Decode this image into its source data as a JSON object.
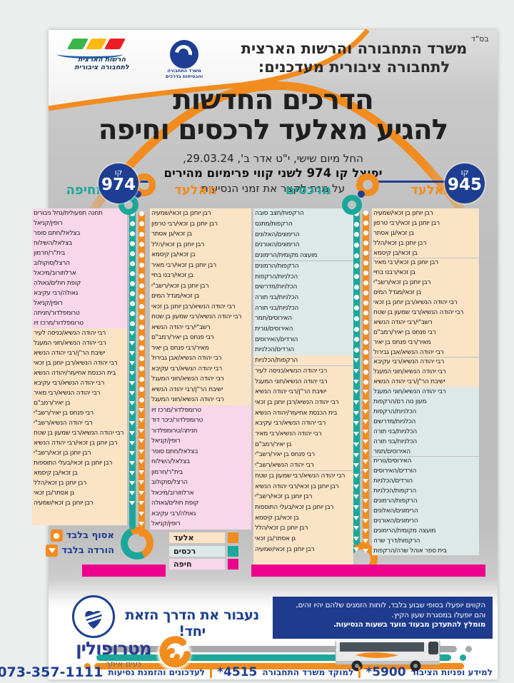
{
  "meta": {
    "bsd": "בס\"ד"
  },
  "header": {
    "line1": "משרד התחבורה והרשות הארצית",
    "line2": "לתחבורה ציבורית מעדכנים:",
    "authority_logo_line1": "הרשות הארצית",
    "authority_logo_line2": "לתחבורה ציבורית",
    "ministry_logo_line1": "משרד התחבורה",
    "ministry_logo_line2": "והבטיחות בדרכים"
  },
  "title": {
    "line1": "הדרכים החדשות",
    "line2": "להגיע מאלעד לרכסים וחיפה"
  },
  "subtitle": {
    "line1": "החל מיום שישי, י\"ט אדר ב', 29.03.24,",
    "line2": "יפוצל קו 974 לשני קווי פרימיום מהירים",
    "line3": "על מנת לקצר את זמני הנסיעות"
  },
  "colors": {
    "orange": "#F28C1E",
    "teal": "#1CA79B",
    "magenta": "#EC008C",
    "dark_blue": "#1d3e92",
    "elad_bg": "#FBE3C6",
    "rechasim_bg": "#DCE9E6",
    "haifa_bg": "#F8D7E8"
  },
  "routes": [
    {
      "badge_prefix": "קו",
      "number": "945",
      "columns": [
        {
          "header": "מאלעד",
          "sections": [
            {
              "city": "elad",
              "marker": "circle",
              "stops": [
                "רבן יוחנן בן זכאי/שמעיה",
                "רבן יוחנן בן זכאי/רבי טרפון",
                "בן זכאי/גן אסתר",
                "רבן יוחנן בן זכאי/הלל",
                "בן זכאי/בן קיסמא",
                "רבן יוחנן בן זכאי/רבי מאיר",
                "בן זכאי/רבנו בחיי",
                "רבן יוחנן בן זכאי/רשב\"י",
                "בן זכאי/מגדל המים",
                "רבי יהודה הנשיא/רבן יוחנן בן זכאי",
                "רבי יהודה הנשיא/רבי שמעון בן שטח",
                "רשב\"י/רבי יהודה הנשיא",
                "רבי פנחס בן יאיר/רמב\"ם",
                "מאיר/רבי פנחס בן יאיר",
                "רבי יהודה הנשיא/אבן גבירול",
                "רבי יהודה הנשיא/רבי עקיבא",
                "רבי יהודה הנשיא/חוני המעגל",
                "ישיבת הר\"ן/רבי יהודה הנשיא"
              ]
            },
            {
              "city": "rechasim",
              "marker": "triangle",
              "stops": [
                "רבי יהודה הנשיא/חוני המעגל",
                "מעון נוה רם/הרקפות",
                "הכלניות/הרקפות",
                "הכלניות/מדרשים",
                "הכלניות/בני תורה",
                "הכלניות/בני תורה",
                "האירוסים/תמר",
                "האירוסים/נורית",
                "הורדים/האירוסים",
                "הורדים/הכלניות",
                "הרקפות/הכלניות",
                "הרקפות/הרמונים",
                "הרימונים/האלונים",
                "הרימונים/האורנים",
                "מועצה מקומית/הרימונים",
                "הרקפות/דרך שרה",
                "בית ספר אוהל שרה/הרקפות"
              ]
            }
          ]
        },
        {
          "header": "מרכסים",
          "sections": [
            {
              "city": "rechasim",
              "marker": "circle",
              "stops": [
                "הרקפות/חצב סובה",
                "הרקפות/מתנס",
                "הרימונים/האלונים",
                "הרימונים/האורנים",
                "מועצה מקומית/הרימונים",
                "הרקפות/הרמונים",
                "הכלניות/הרקפות",
                "הכלניות/מדרשים",
                "הכלניות/בני תורה",
                "הכלניות/בני תורה",
                "האירוסים/תמר",
                "האירוסים/נורית",
                "הורדים/האירוסים",
                "הורדים/הכלניות"
              ]
            },
            {
              "city": "elad",
              "marker": "triangle",
              "stops": [
                "הרקפות/הכלניות",
                "רבי יהודה הנשיא/כניסה לעיר",
                "רבי יהודה הנשיא/חוני המעגל",
                "ישיבת הר\"ן/רבי יהודה הנשיא",
                "רבי יהודה הנשיא/רבן יוחנן בן זכאי",
                "בית הכנסת אחיעזר/יהודה הנשיא",
                "רבי יהודה הנשיא/רבי עקיבא",
                "רבי יהודה הנשיא/רבי מאיר",
                "בן יאיר/רמב\"ם",
                "רבי פנחס בן יאיר/רשב\"י",
                "רבי יהודה הנשיא/רשב\"י",
                "רבי יהודה הנשיא/רבי שמעון בן שטח",
                "רבן יוחנן בן זכאי/רבי יהודה הנשיא",
                "רבן יוחנן בן זכאי/רשב\"י",
                "רבן יוחנן בן זכאי/בעלי התוספות",
                "בן זכאי/בן קיסמא",
                "רבן יוחנן בן זכאי/הלל",
                "גן אסתר/בן זכאי",
                "רבן יוחנן בן זכאי/שמעיה"
              ]
            }
          ]
        }
      ]
    },
    {
      "badge_prefix": "קו",
      "number": "974",
      "columns": [
        {
          "header": "מאלעד",
          "sections": [
            {
              "city": "elad",
              "marker": "circle",
              "stops": [
                "רבן יוחנן בן זכאי/שמעיה",
                "רבן יוחנן בן זכאי/רבי טרפון",
                "בן זכאי/גן אסתר",
                "רבן יוחנן בן זכאי/הלל",
                "בן זכאי/בן קיסמא",
                "רבן יוחנן בן זכאי/רבי מאיר",
                "בן זכאי/רבנו בחיי",
                "רבן יוחנן בן זכאי/רשב\"י",
                "בן זכאי/מגדל המים",
                "רבי יהודה הנשיא/רבן יוחנן בן זכאי",
                "רבי יהודה הנשיא/רבי שמעון בן שטח",
                "רשב\"י/רבי יהודה הנשיא",
                "רבי פנחס בן יאיר/רמב\"ם",
                "מאיר/רבי פנחס בן יאיר",
                "רבי יהודה הנשיא/אבן גבירול",
                "רבי יהודה הנשיא/רבי עקיבא",
                "רבי יהודה הנשיא/חוני המעגל",
                "ישיבת הר\"ן/רבי יהודה הנשיא",
                "רבי יהודה הנשיא/חוני המעגל"
              ]
            },
            {
              "city": "haifa",
              "marker": "triangle",
              "stops": [
                "טרומפלדור/מרכז זיו",
                "טרומפלדור/כיכר דוד",
                "חניתה/טרומפלדור",
                "רופין/קניאל",
                "בצלאל/חתם סופר",
                "בצלאל/השילוח",
                "בית\"ר/חרמון",
                "הרצל/סוקולוב",
                "ארלוזורוב/מיכאל",
                "קופת חולים/גאולה",
                "גאולה/רבי עקיבא",
                "רופין/קניאל"
              ]
            }
          ]
        },
        {
          "header": "מחיפה",
          "sections": [
            {
              "city": "haifa",
              "marker": "circle",
              "stops": [
                "תחנה תפעולית/נחל גיבורים",
                "רופין/קניאל",
                "בצלאל/חתם סופר",
                "בצלאל/השילוח",
                "בית\"ר/חרמון",
                "הרצל/סוקולוב",
                "ארלוזורוב/מיכאל",
                "קופת חולים/גאולה",
                "גאולה/רבי עקיבא",
                "רופין/קניאל",
                "טרומפלדור/חניתה",
                "טרומפלדור/מרכז זיו"
              ]
            },
            {
              "city": "elad",
              "marker": "triangle",
              "stops": [
                "רבי יהודה הנשיא/כניסה לעיר",
                "רבי יהודה הנשיא/חוני המעגל",
                "ישיבת הר\"ן/רבי יהודה הנשיא",
                "רבי יהודה הנשיא/רבן יוחנן בן זכאי",
                "בית הכנסת אחיעזר/יהודה הנשיא",
                "רבי יהודה הנשיא/רבי עקיבא",
                "רבי יהודה הנשיא/רבי מאיר",
                "בן יאיר/רמב\"ם",
                "רבי פנחס בן יאיר/רשב\"י",
                "רבי יהודה הנשיא/רשב\"י",
                "רבי יהודה הנשיא/רבי שמעון בן שטח",
                "רבן יוחנן בן זכאי/רבי יהודה הנשיא",
                "רבן יוחנן בן זכאי/רשב\"י",
                "רבן יוחנן בן זכאי/בעלי התוספות",
                "בן זכאי/בן קיסמא",
                "רבן יוחנן בן זכאי/הלל",
                "גן אסתר/בן זכאי",
                "רבן יוחנן בן זכאי/שמעיה"
              ]
            }
          ]
        }
      ]
    }
  ],
  "legend_markers": [
    {
      "label": "אסוף בלבד",
      "shape": "circle"
    },
    {
      "label": "הורדה בלבד",
      "shape": "triangle"
    }
  ],
  "legend_cities": [
    {
      "label": "אלעד",
      "city": "elad"
    },
    {
      "label": "רכסים",
      "city": "rechasim"
    },
    {
      "label": "חיפה",
      "city": "haifa"
    }
  ],
  "notice": {
    "line1": "הקווים יופעלו בסופי שבוע בלבד, לוחות הזמנים שלהם יהיו זהים,",
    "line2": "והם יופעלו במסגרת שעון הקיץ.",
    "line3": "מומלץ להתעדכן מבעוד מועד בשעות הנסיעות."
  },
  "slogan": "נעבור את הדרך הזאת יחד!",
  "brand": {
    "name": "מטרופולין",
    "tagline": "נעים איתך"
  },
  "footer": {
    "items": [
      {
        "label": "למידע ופניות הציבור",
        "value": "*5900",
        "big": false
      },
      {
        "label": "למוקד משרד התחבורה",
        "value": "*4515",
        "big": false
      },
      {
        "label": "לעדכונים והזמנת נסיעות",
        "value": "073-357-1111",
        "big": true
      }
    ]
  }
}
